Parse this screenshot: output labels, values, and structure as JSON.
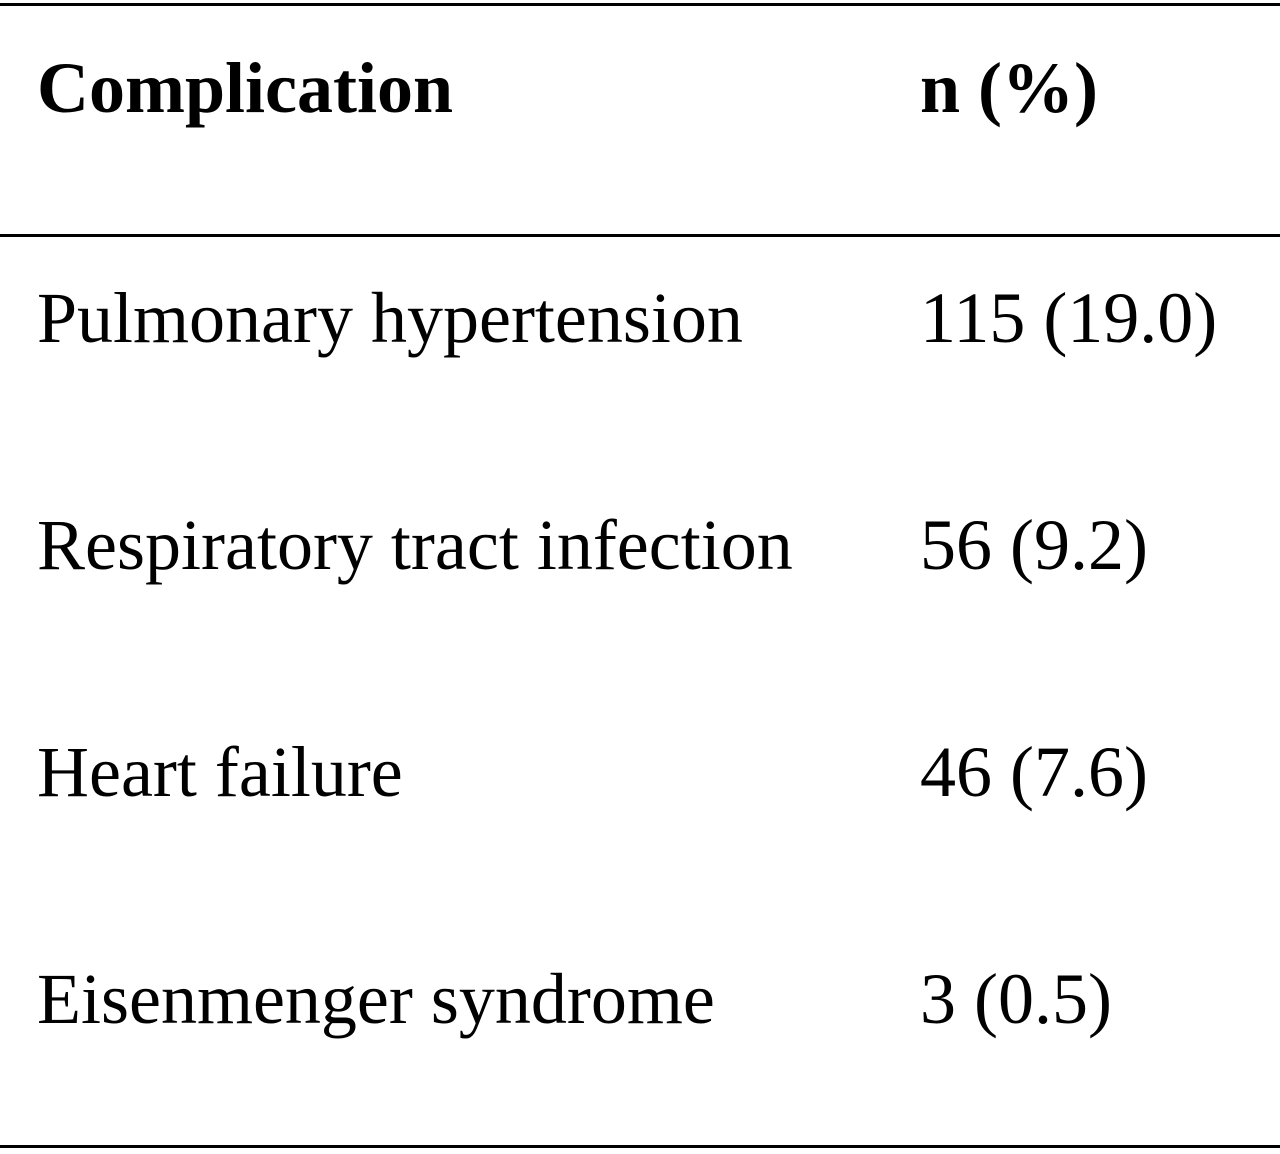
{
  "table": {
    "header": [
      "Complication",
      "n (%)"
    ],
    "rows": [
      [
        "Pulmonary hypertension",
        "115 (19.0)"
      ],
      [
        "Respiratory tract infection",
        "56 (9.2)"
      ],
      [
        "Heart failure",
        "46 (7.6)"
      ],
      [
        "Eisenmenger syndrome",
        "3 (0.5)"
      ]
    ]
  }
}
